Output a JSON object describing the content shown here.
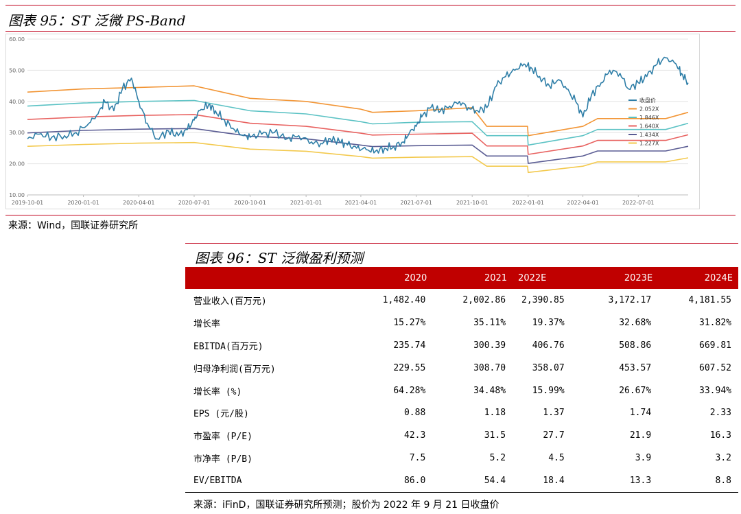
{
  "figure95": {
    "title": "图表 95：ST 泛微 PS-Band",
    "source": "来源：Wind，国联证券研究所"
  },
  "figure96": {
    "title": "图表 96：ST 泛微盈利预测",
    "source": "来源：iFinD，国联证券研究所预测；股价为 2022 年 9 月 21 日收盘价",
    "table": {
      "headers": [
        "",
        "2020",
        "2021",
        "2022E",
        "2023E",
        "2024E"
      ],
      "rows": [
        {
          "label": "营业收入(百万元)",
          "values": [
            "1,482.40",
            "2,002.86",
            "2,390.85",
            "3,172.17",
            "4,181.55"
          ]
        },
        {
          "label": "增长率",
          "values": [
            "15.27%",
            "35.11%",
            "19.37%",
            "32.68%",
            "31.82%"
          ]
        },
        {
          "label": "EBITDA(百万元)",
          "values": [
            "235.74",
            "300.39",
            "406.76",
            "508.86",
            "669.81"
          ]
        },
        {
          "label": "归母净利润(百万元)",
          "values": [
            "229.55",
            "308.70",
            "358.07",
            "453.57",
            "607.52"
          ]
        },
        {
          "label": "增长率 (%)",
          "values": [
            "64.28%",
            "34.48%",
            "15.99%",
            "26.67%",
            "33.94%"
          ]
        },
        {
          "label": "EPS (元/股)",
          "values": [
            "0.88",
            "1.18",
            "1.37",
            "1.74",
            "2.33"
          ]
        },
        {
          "label": "市盈率 (P/E)",
          "values": [
            "42.3",
            "31.5",
            "27.7",
            "21.9",
            "16.3"
          ]
        },
        {
          "label": "市净率 (P/B)",
          "values": [
            "7.5",
            "5.2",
            "4.5",
            "3.9",
            "3.2"
          ]
        },
        {
          "label": "EV/EBITDA",
          "values": [
            "86.0",
            "54.4",
            "18.4",
            "13.3",
            "8.8"
          ]
        }
      ]
    }
  },
  "chart_data": {
    "type": "line",
    "title": "",
    "xlabel": "",
    "ylabel": "",
    "ylim": [
      10,
      60
    ],
    "yticks": [
      "10.00",
      "20.00",
      "30.00",
      "40.00",
      "50.00",
      "60.00"
    ],
    "xlim": [
      "2019-10-01",
      "2022-09-21"
    ],
    "xticks": [
      "2019-10-01",
      "2020-01-01",
      "2020-04-01",
      "2020-07-01",
      "2020-10-01",
      "2021-01-01",
      "2021-04-01",
      "2021-07-01",
      "2021-10-01",
      "2022-01-01",
      "2022-04-01",
      "2022-07-01"
    ],
    "grid": true,
    "legend": "right",
    "series": [
      {
        "name": "收盘价",
        "color": "#2e7ea7",
        "x": [
          "2019-10-01",
          "2019-10-20",
          "2019-11-10",
          "2019-12-01",
          "2019-12-20",
          "2020-01-10",
          "2020-01-25",
          "2020-02-05",
          "2020-02-20",
          "2020-03-05",
          "2020-03-20",
          "2020-04-01",
          "2020-04-15",
          "2020-05-01",
          "2020-05-20",
          "2020-06-05",
          "2020-06-20",
          "2020-07-01",
          "2020-07-10",
          "2020-07-25",
          "2020-08-05",
          "2020-08-20",
          "2020-09-05",
          "2020-09-20",
          "2020-10-01",
          "2020-10-20",
          "2020-11-10",
          "2020-12-01",
          "2020-12-20",
          "2021-01-10",
          "2021-01-25",
          "2021-02-10",
          "2021-02-25",
          "2021-03-10",
          "2021-03-25",
          "2021-04-10",
          "2021-04-25",
          "2021-05-10",
          "2021-05-25",
          "2021-06-10",
          "2021-06-20",
          "2021-07-01",
          "2021-07-10",
          "2021-07-25",
          "2021-08-10",
          "2021-08-25",
          "2021-09-10",
          "2021-09-25",
          "2021-10-10",
          "2021-10-25",
          "2021-11-10",
          "2021-11-25",
          "2021-12-10",
          "2021-12-25",
          "2022-01-05",
          "2022-01-20",
          "2022-02-05",
          "2022-02-20",
          "2022-03-05",
          "2022-03-20",
          "2022-04-01",
          "2022-04-15",
          "2022-05-01",
          "2022-05-15",
          "2022-06-01",
          "2022-06-15",
          "2022-07-01",
          "2022-07-15",
          "2022-08-01",
          "2022-08-15",
          "2022-09-01",
          "2022-09-10",
          "2022-09-21"
        ],
        "values": [
          28,
          29.5,
          28.5,
          29,
          30,
          33,
          36,
          40,
          37,
          44,
          47.5,
          40,
          33,
          28,
          30.5,
          29,
          31,
          34,
          37,
          39,
          37,
          34,
          31,
          29,
          28.5,
          29.5,
          30,
          28,
          29,
          27,
          26.5,
          28,
          27,
          26,
          25,
          24.5,
          24,
          25,
          25.5,
          27,
          30,
          32,
          35,
          38,
          37,
          38.5,
          40,
          38,
          37,
          38,
          45,
          48,
          50,
          52,
          51,
          48,
          45,
          47,
          44,
          40,
          35,
          42,
          46,
          50,
          49,
          44,
          46,
          48,
          52,
          54,
          52,
          49,
          46
        ]
      },
      {
        "name": "2.052X",
        "color": "#f29535",
        "x": [
          "2019-10-01",
          "2020-01-01",
          "2020-04-01",
          "2020-07-01",
          "2020-10-01",
          "2021-01-01",
          "2021-04-01",
          "2021-04-20",
          "2021-07-01",
          "2021-10-01",
          "2021-10-25",
          "2021-12-31",
          "2022-01-01",
          "2022-04-01",
          "2022-04-25",
          "2022-08-15",
          "2022-09-21"
        ],
        "values": [
          43,
          44,
          44.5,
          45,
          41,
          40,
          37.5,
          36.5,
          37,
          38,
          32,
          32,
          29,
          32,
          34.5,
          34.5,
          36.5
        ]
      },
      {
        "name": "1.846X",
        "color": "#5bc2c4",
        "x": [
          "2019-10-01",
          "2020-01-01",
          "2020-04-01",
          "2020-07-01",
          "2020-10-01",
          "2021-01-01",
          "2021-04-01",
          "2021-04-20",
          "2021-07-01",
          "2021-10-01",
          "2021-10-25",
          "2021-12-31",
          "2022-01-01",
          "2022-04-01",
          "2022-04-25",
          "2022-08-15",
          "2022-09-21"
        ],
        "values": [
          38.5,
          39.5,
          40,
          40.3,
          37,
          36,
          33.5,
          32.8,
          33.3,
          33.5,
          29,
          29,
          26,
          29,
          31,
          31,
          33
        ]
      },
      {
        "name": "1.640X",
        "color": "#e8615f",
        "x": [
          "2019-10-01",
          "2020-01-01",
          "2020-04-01",
          "2020-07-01",
          "2020-10-01",
          "2021-01-01",
          "2021-04-01",
          "2021-04-20",
          "2021-07-01",
          "2021-10-01",
          "2021-10-25",
          "2021-12-31",
          "2022-01-01",
          "2022-04-01",
          "2022-04-25",
          "2022-08-15",
          "2022-09-21"
        ],
        "values": [
          34.2,
          35,
          35.5,
          35.8,
          33,
          32,
          29.8,
          29.2,
          29.5,
          29.8,
          25.7,
          25.7,
          23,
          25.7,
          27.5,
          27.5,
          29.3
        ]
      },
      {
        "name": "1.434X",
        "color": "#5a5c93",
        "x": [
          "2019-10-01",
          "2020-01-01",
          "2020-04-01",
          "2020-07-01",
          "2020-10-01",
          "2021-01-01",
          "2021-04-01",
          "2021-04-20",
          "2021-07-01",
          "2021-10-01",
          "2021-10-25",
          "2021-12-31",
          "2022-01-01",
          "2022-04-01",
          "2022-04-25",
          "2022-08-15",
          "2022-09-21"
        ],
        "values": [
          29.9,
          30.7,
          31.1,
          31.3,
          28.8,
          28,
          26,
          25.5,
          25.8,
          26,
          22.5,
          22.5,
          20.1,
          22.5,
          24.1,
          24.1,
          25.6
        ]
      },
      {
        "name": "1.227X",
        "color": "#f3c94d",
        "x": [
          "2019-10-01",
          "2020-01-01",
          "2020-04-01",
          "2020-07-01",
          "2020-10-01",
          "2021-01-01",
          "2021-04-01",
          "2021-04-20",
          "2021-07-01",
          "2021-10-01",
          "2021-10-25",
          "2021-12-31",
          "2022-01-01",
          "2022-04-01",
          "2022-04-25",
          "2022-08-15",
          "2022-09-21"
        ],
        "values": [
          25.6,
          26.2,
          26.6,
          26.8,
          24.7,
          24,
          22.3,
          21.8,
          22.1,
          22.3,
          19.2,
          19.2,
          17.2,
          19.2,
          20.6,
          20.6,
          21.9
        ]
      }
    ]
  }
}
